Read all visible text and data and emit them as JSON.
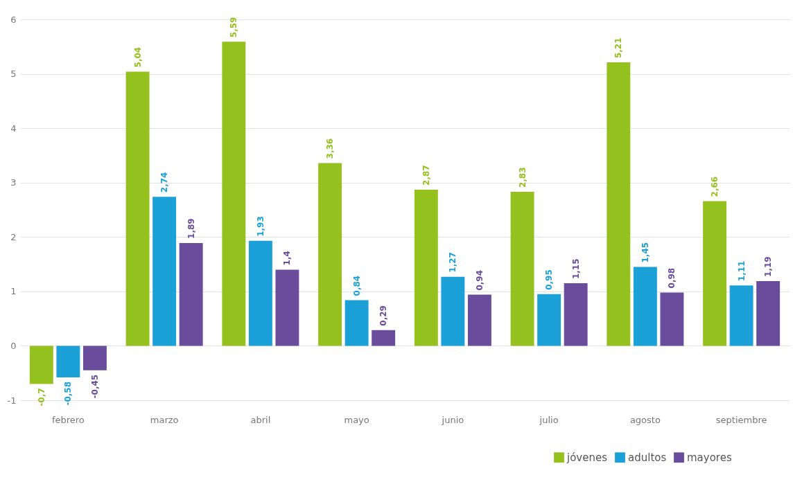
{
  "chart_data": {
    "type": "bar",
    "categories": [
      "febrero",
      "marzo",
      "abril",
      "mayo",
      "junio",
      "julio",
      "agosto",
      "septiembre"
    ],
    "series": [
      {
        "name": "jóvenes",
        "color": "#95c11f",
        "values": [
          -0.7,
          5.04,
          5.59,
          3.36,
          2.87,
          2.83,
          5.21,
          2.66
        ],
        "value_labels": [
          "-0,7",
          "5,04",
          "5,59",
          "3,36",
          "2,87",
          "2,83",
          "5,21",
          "2,66"
        ]
      },
      {
        "name": "adultos",
        "color": "#1ba1d7",
        "values": [
          -0.58,
          2.74,
          1.93,
          0.84,
          1.27,
          0.95,
          1.45,
          1.11
        ],
        "value_labels": [
          "-0,58",
          "2,74",
          "1,93",
          "0,84",
          "1,27",
          "0,95",
          "1,45",
          "1,11"
        ]
      },
      {
        "name": "mayores",
        "color": "#6a4c9c",
        "values": [
          -0.45,
          1.89,
          1.4,
          0.29,
          0.94,
          1.15,
          0.98,
          1.19
        ],
        "value_labels": [
          "-0,45",
          "1,89",
          "1,4",
          "0,29",
          "0,94",
          "1,15",
          "0,98",
          "1,19"
        ]
      }
    ],
    "ylim": [
      -1,
      6
    ],
    "yticks": [
      -1,
      0,
      1,
      2,
      3,
      4,
      5,
      6
    ],
    "grid": "y",
    "legend": "bottom right"
  }
}
